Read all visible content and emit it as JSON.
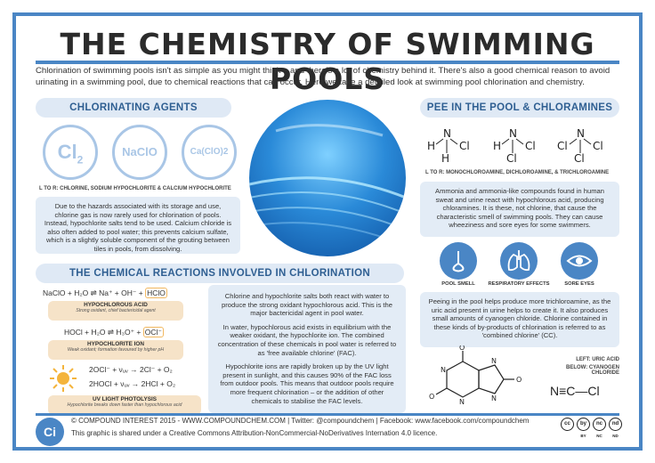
{
  "title": "THE CHEMISTRY OF SWIMMING POOLS",
  "intro": "Chlorination of swimming pools isn't as simple as you might think – and there's a lot of chemistry behind it. There's also a good chemical reason to avoid urinating in a swimming pool, due to chemical reactions that can occur. Here we take a detailed look at swimming pool chlorination and chemistry.",
  "agents": {
    "heading": "CHLORINATING AGENTS",
    "items": [
      "Cl2",
      "NaClO",
      "Ca(ClO)2"
    ],
    "caption": "L TO R: CHLORINE, SODIUM HYPOCHLORITE & CALCIUM HYPOCHLORITE",
    "text": "Due to the hazards associated with its storage and use, chlorine gas is now rarely used for chlorination of pools. Instead, hypochlorite salts tend to be used. Calcium chloride is also often added to pool water; this prevents calcium sulfate, which is a slightly soluble component of the grouting between tiles in pools, from dissolving."
  },
  "pee": {
    "heading": "PEE IN THE POOL & CHLORAMINES",
    "caption": "L TO R: MONOCHLOROAMINE, DICHLOROAMINE, & TRICHLOROAMINE",
    "text": "Ammonia and ammonia-like compounds found in human sweat and urine react with hypochlorous acid, producing chloramines. It is these, not chlorine, that cause the characteristic smell of swimming pools. They can cause wheeziness and sore eyes for some swimmers.",
    "effects": [
      "POOL SMELL",
      "RESPIRATORY EFFECTS",
      "SORE EYES"
    ],
    "text2": "Peeing in the pool helps produce more trichloroamine, as the uric acid present in urine helps to create it. It also produces small amounts of cyanogen chloride. Chlorine contained in these kinds of by-products of chlorination is referred to as 'combined chlorine' (CC).",
    "struct_caption_1": "LEFT: URIC ACID",
    "struct_caption_2": "BELOW: CYANOGEN CHLORIDE",
    "cyanogen": "N≡C—Cl"
  },
  "reactions": {
    "heading": "THE CHEMICAL REACTIONS INVOLVED IN CHLORINATION",
    "eq1": "NaClO + H₂O ⇌ Na⁺ + OH⁻ +",
    "eq1_hl": "HClO",
    "eq1_label": "HYPOCHLOROUS ACID",
    "eq1_sub": "Strong oxidant, chief bactericidal agent",
    "eq2": "HOCl + H₂O ⇌ H₃O⁺ +",
    "eq2_hl": "OCl⁻",
    "eq2_label": "HYPOCHLORITE ION",
    "eq2_sub": "Weak oxidant; formation favoured by higher pH",
    "eq3a": "2OCl⁻ + νᵤᵥ → 2Cl⁻ + O₂",
    "eq3b": "2HOCl + νᵤᵥ → 2HCl + O₂",
    "eq3_label": "UV LIGHT PHOTOLYSIS",
    "eq3_sub": "Hypochlorite breaks down faster than hypochlorous acid",
    "p1": "Chlorine and hypochlorite salts both react with water to produce the strong oxidant hypochlorous acid. This is the major bactericidal agent in pool water.",
    "p2": "In water, hypochlorous acid exists in equilibrium with the weaker oxidant, the hypochlorite ion. The combined concentration of these chemicals in pool water is referred to as 'free available chlorine' (FAC).",
    "p3": "Hypochlorite ions are rapidly broken up by the UV light present in sunlight, and this causes 90% of the FAC loss from outdoor pools. This means that outdoor pools require more frequent chlorination – or the addition of other chemicals to stabilise the FAC levels."
  },
  "footer": {
    "logo": "Ci",
    "line1": "© COMPOUND INTEREST 2015 - WWW.COMPOUNDCHEM.COM | Twitter: @compoundchem | Facebook: www.facebook.com/compoundchem",
    "line2": "This graphic is shared under a Creative Commons Attribution-NonCommercial-NoDerivatives Internation 4.0 licence.",
    "cc": [
      "cc",
      "by",
      "nc",
      "nd"
    ],
    "cc_labels": [
      "",
      "BY",
      "NC",
      "ND"
    ]
  },
  "colors": {
    "accent": "#4a86c5",
    "pill_bg": "#dfe9f5",
    "box_bg": "#e3ecf6",
    "label_bg": "#f6e3c8",
    "highlight": "#f2b860"
  }
}
